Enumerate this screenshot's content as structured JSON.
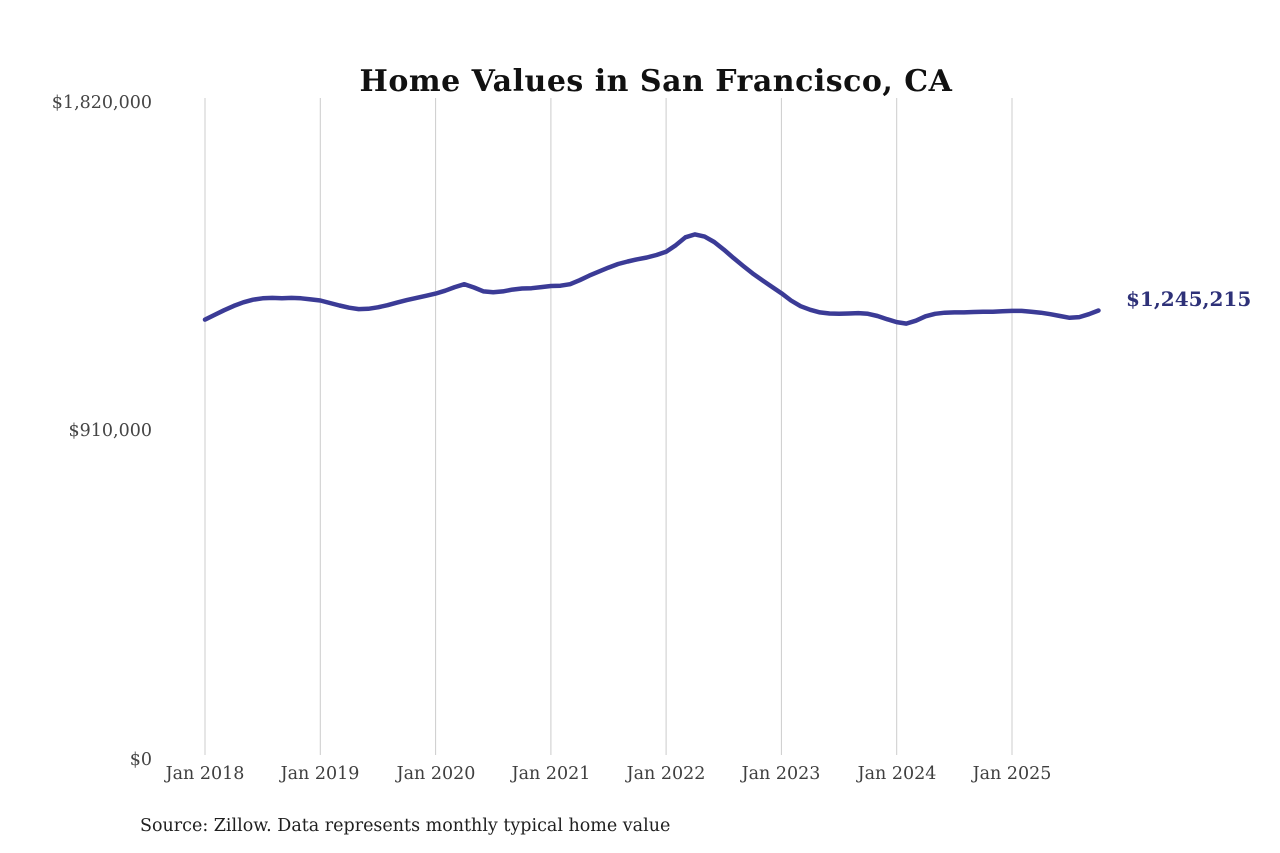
{
  "title": "Home Values in San Francisco, CA",
  "source_note": "Source: Zillow. Data represents monthly typical home value",
  "end_label": "$1,245,215",
  "colors": {
    "line": "#3b3b96",
    "end_label": "#2e3178",
    "gridline": "#cccccc",
    "title": "#111111",
    "axis_label": "#454545",
    "source": "#202020",
    "background": "#ffffff"
  },
  "y_axis": {
    "ticks": [
      "$1,820,000",
      "$910,000",
      "$0"
    ],
    "tick_values": [
      1820000,
      910000,
      0
    ]
  },
  "x_axis": {
    "ticks": [
      "Jan 2018",
      "Jan 2019",
      "Jan 2020",
      "Jan 2021",
      "Jan 2022",
      "Jan 2023",
      "Jan 2024",
      "Jan 2025"
    ]
  },
  "chart_data": {
    "type": "line",
    "title": "Home Values in San Francisco, CA",
    "unit": "USD",
    "ylim": [
      0,
      1820000
    ],
    "yticks": [
      0,
      910000,
      1820000
    ],
    "ytick_labels": [
      "$0",
      "$910,000",
      "$1,820,000"
    ],
    "xtick_labels": [
      "Jan 2018",
      "Jan 2019",
      "Jan 2020",
      "Jan 2021",
      "Jan 2022",
      "Jan 2023",
      "Jan 2024",
      "Jan 2025"
    ],
    "grid": "vertical-only",
    "legend": "none",
    "final_value": 1245215,
    "final_value_label": "$1,245,215",
    "months": [
      "2018-01",
      "2018-02",
      "2018-03",
      "2018-04",
      "2018-05",
      "2018-06",
      "2018-07",
      "2018-08",
      "2018-09",
      "2018-10",
      "2018-11",
      "2018-12",
      "2019-01",
      "2019-02",
      "2019-03",
      "2019-04",
      "2019-05",
      "2019-06",
      "2019-07",
      "2019-08",
      "2019-09",
      "2019-10",
      "2019-11",
      "2019-12",
      "2020-01",
      "2020-02",
      "2020-03",
      "2020-04",
      "2020-05",
      "2020-06",
      "2020-07",
      "2020-08",
      "2020-09",
      "2020-10",
      "2020-11",
      "2020-12",
      "2021-01",
      "2021-02",
      "2021-03",
      "2021-04",
      "2021-05",
      "2021-06",
      "2021-07",
      "2021-08",
      "2021-09",
      "2021-10",
      "2021-11",
      "2021-12",
      "2022-01",
      "2022-02",
      "2022-03",
      "2022-04",
      "2022-05",
      "2022-06",
      "2022-07",
      "2022-08",
      "2022-09",
      "2022-10",
      "2022-11",
      "2022-12",
      "2023-01",
      "2023-02",
      "2023-03",
      "2023-04",
      "2023-05",
      "2023-06",
      "2023-07",
      "2023-08",
      "2023-09",
      "2023-10",
      "2023-11",
      "2023-12",
      "2024-01",
      "2024-02",
      "2024-03",
      "2024-04",
      "2024-05",
      "2024-06",
      "2024-07",
      "2024-08",
      "2024-09",
      "2024-10",
      "2024-11",
      "2024-12",
      "2025-01",
      "2025-02",
      "2025-03",
      "2025-04",
      "2025-05",
      "2025-06",
      "2025-07",
      "2025-08",
      "2025-09",
      "2025-10"
    ],
    "values": [
      1220000,
      1233000,
      1246000,
      1258000,
      1268000,
      1275000,
      1279000,
      1280000,
      1279000,
      1280000,
      1279000,
      1276000,
      1273000,
      1266000,
      1259000,
      1253000,
      1249000,
      1250000,
      1254000,
      1260000,
      1267000,
      1274000,
      1280000,
      1286000,
      1292000,
      1300000,
      1310000,
      1318000,
      1309000,
      1298000,
      1296000,
      1298000,
      1303000,
      1306000,
      1307000,
      1310000,
      1313000,
      1314000,
      1318000,
      1329000,
      1342000,
      1353000,
      1364000,
      1374000,
      1381000,
      1387000,
      1392000,
      1399000,
      1408000,
      1426000,
      1448000,
      1456000,
      1450000,
      1435000,
      1414000,
      1391000,
      1369000,
      1348000,
      1329000,
      1311000,
      1293000,
      1273000,
      1257000,
      1247000,
      1240000,
      1237000,
      1236000,
      1237000,
      1238000,
      1236000,
      1230000,
      1221000,
      1213000,
      1209000,
      1217000,
      1229000,
      1236000,
      1239000,
      1240000,
      1240000,
      1241000,
      1242000,
      1242000,
      1243000,
      1244000,
      1244000,
      1242000,
      1239000,
      1235000,
      1230000,
      1225000,
      1227000,
      1235000,
      1245215
    ]
  }
}
